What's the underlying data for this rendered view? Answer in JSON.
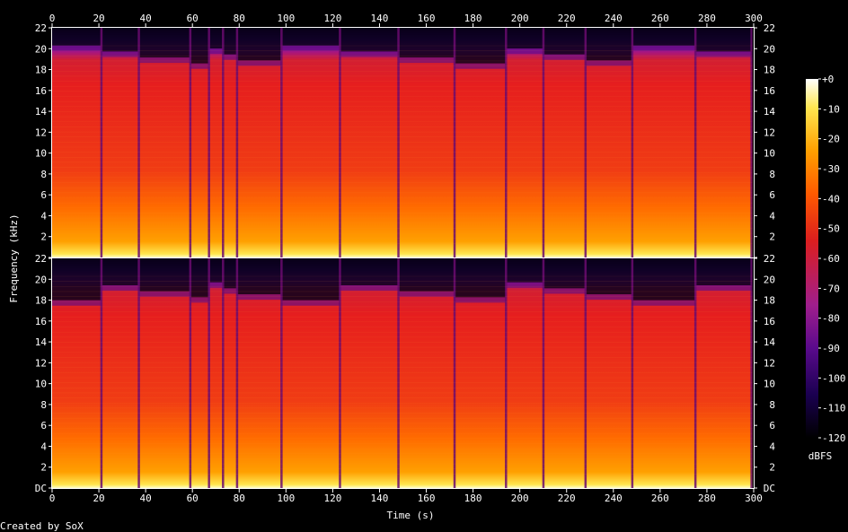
{
  "chart_data": {
    "type": "heatmap",
    "title": "",
    "xlabel": "Time (s)",
    "ylabel": "Frequency (kHz)",
    "xlim": [
      0,
      300
    ],
    "ylim_khz": [
      0,
      22
    ],
    "x_ticks": [
      "0",
      "20",
      "40",
      "60",
      "80",
      "100",
      "120",
      "140",
      "160",
      "180",
      "200",
      "220",
      "240",
      "260",
      "280",
      "300"
    ],
    "y_ticks": [
      "DC",
      "2",
      "4",
      "6",
      "8",
      "10",
      "12",
      "14",
      "16",
      "18",
      "20",
      "22"
    ],
    "channels": [
      "top",
      "bottom"
    ],
    "colorbar": {
      "label": "dBFS",
      "ticks": [
        "+0",
        "-10",
        "-20",
        "-30",
        "-40",
        "-50",
        "-60",
        "-70",
        "-80",
        "-90",
        "-100",
        "-110",
        "-120"
      ],
      "range": [
        -120,
        0
      ],
      "colors": [
        "#000000",
        "#1a0050",
        "#5a0a8c",
        "#a01e8c",
        "#dc1e1e",
        "#ff5a00",
        "#ffa000",
        "#ffe650",
        "#ffffff"
      ]
    },
    "segment_boundaries_s": [
      21,
      37,
      59,
      67,
      73,
      79,
      98,
      123,
      148,
      172,
      194,
      210,
      228,
      248,
      275,
      299
    ],
    "footer": "Created by SoX"
  }
}
